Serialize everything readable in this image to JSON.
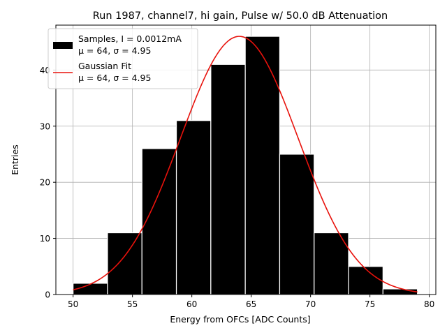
{
  "chart_data": {
    "type": "bar",
    "title": "Run 1987, channel7, hi gain, Pulse w/ 50.0 dB Attenuation",
    "xlabel": "Energy from OFCs [ADC Counts]",
    "ylabel": "Entries",
    "xlim": [
      48.55,
      80.55
    ],
    "ylim": [
      0,
      48
    ],
    "xticks": [
      50,
      55,
      60,
      65,
      70,
      75,
      80
    ],
    "yticks": [
      0,
      10,
      20,
      30,
      40
    ],
    "grid": true,
    "bin_edges": [
      50.0,
      52.9,
      55.8,
      58.7,
      61.6,
      64.5,
      67.4,
      70.3,
      73.2,
      76.1,
      79.0
    ],
    "values": [
      2,
      11,
      26,
      31,
      41,
      46,
      25,
      11,
      5,
      1
    ],
    "bar_color": "#000000",
    "fit": {
      "name": "Gaussian Fit",
      "mu": 64,
      "sigma": 4.95,
      "amplitude": 46,
      "x_range": [
        50,
        79
      ],
      "color": "#e8120c"
    },
    "legend": {
      "placement": "top-left",
      "entries": [
        {
          "label_line1": "Samples, I = 0.0012mA",
          "label_line2": "μ = 64, σ = 4.95"
        },
        {
          "label_line1": "Gaussian Fit",
          "label_line2": "μ = 64, σ = 4.95"
        }
      ]
    }
  }
}
